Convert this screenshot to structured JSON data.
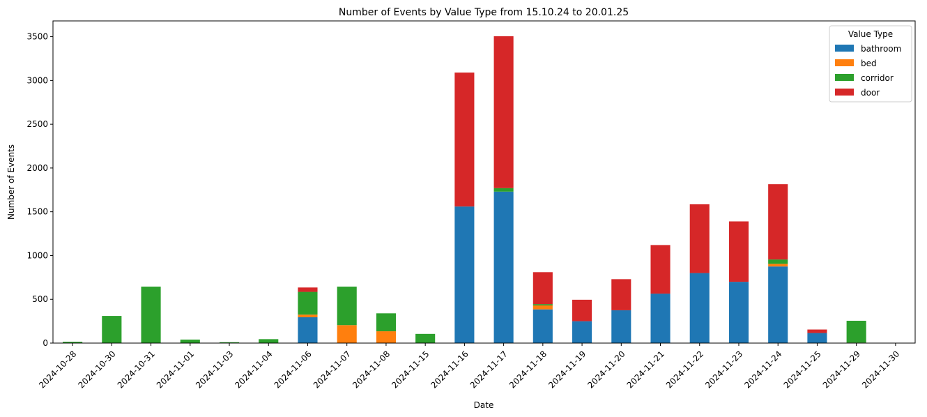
{
  "chart_data": {
    "type": "bar",
    "stacked": true,
    "title": "Number of Events by Value Type from 15.10.24 to 20.01.25",
    "xlabel": "Date",
    "ylabel": "Number of Events",
    "ylim": [
      0,
      3680
    ],
    "yticks": [
      0,
      500,
      1000,
      1500,
      2000,
      2500,
      3000,
      3500
    ],
    "grid": false,
    "legend": {
      "title": "Value Type",
      "position": "top-right"
    },
    "categories": [
      "2024-10-28",
      "2024-10-30",
      "2024-10-31",
      "2024-11-01",
      "2024-11-03",
      "2024-11-04",
      "2024-11-06",
      "2024-11-07",
      "2024-11-08",
      "2024-11-15",
      "2024-11-16",
      "2024-11-17",
      "2024-11-18",
      "2024-11-19",
      "2024-11-20",
      "2024-11-21",
      "2024-11-22",
      "2024-11-23",
      "2024-11-24",
      "2024-11-25",
      "2024-11-29",
      "2024-11-30"
    ],
    "series": [
      {
        "name": "bathroom",
        "color": "#1f77b4",
        "values": [
          0,
          0,
          0,
          0,
          0,
          0,
          295,
          0,
          0,
          0,
          1560,
          1730,
          385,
          250,
          375,
          565,
          800,
          700,
          875,
          115,
          0,
          0
        ]
      },
      {
        "name": "bed",
        "color": "#ff7f0e",
        "values": [
          0,
          0,
          0,
          0,
          0,
          0,
          30,
          205,
          135,
          0,
          0,
          0,
          45,
          0,
          0,
          0,
          0,
          0,
          30,
          0,
          5,
          0
        ]
      },
      {
        "name": "corridor",
        "color": "#2ca02c",
        "values": [
          15,
          310,
          645,
          40,
          10,
          45,
          260,
          440,
          205,
          105,
          0,
          40,
          15,
          0,
          0,
          0,
          0,
          0,
          50,
          0,
          250,
          0
        ]
      },
      {
        "name": "door",
        "color": "#d62728",
        "values": [
          0,
          0,
          0,
          0,
          0,
          0,
          50,
          0,
          0,
          0,
          1530,
          1735,
          365,
          245,
          355,
          555,
          785,
          690,
          860,
          40,
          0,
          0
        ]
      }
    ]
  }
}
